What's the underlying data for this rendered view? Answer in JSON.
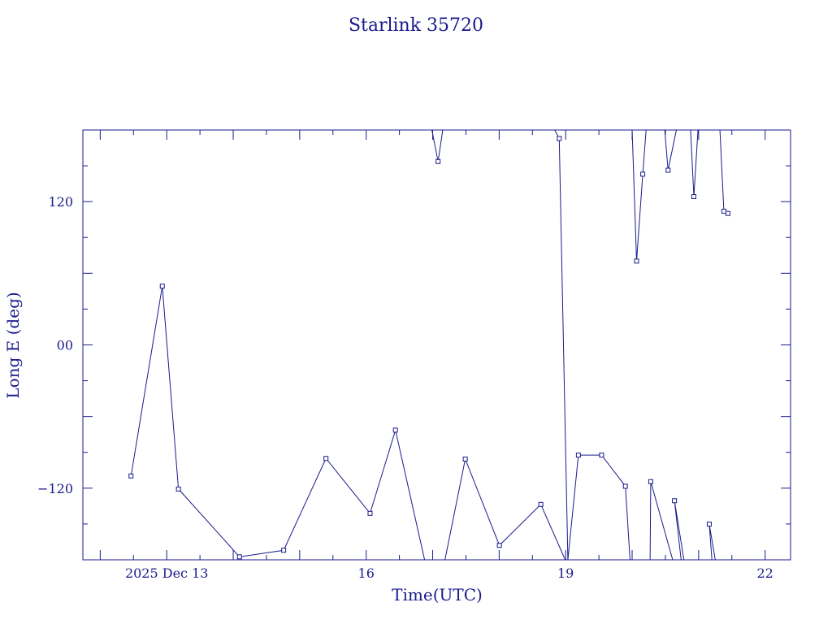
{
  "chart_data": {
    "type": "line",
    "title": "Starlink 35720",
    "xlabel": "Time(UTC)",
    "ylabel": "Long E (deg)",
    "xlim": [
      "2025-12-11T17:44",
      "2025-12-22T09:11"
    ],
    "ylim": [
      -180,
      180
    ],
    "y_ticks": [
      {
        "value": 120,
        "label": "120"
      },
      {
        "value": 0,
        "label": "00"
      },
      {
        "value": -120,
        "label": "−120"
      }
    ],
    "x_ticks": [
      {
        "value": "2025-12-13",
        "label": "2025 Dec 13"
      },
      {
        "value": "2025-12-16",
        "label": "16"
      },
      {
        "value": "2025-12-19",
        "label": "19"
      },
      {
        "value": "2025-12-22",
        "label": "22"
      }
    ],
    "grid": false,
    "colors": {
      "line": "#1a1a8c",
      "axes": "#1a1a8c",
      "text": "#1a1a8c"
    },
    "marker": "open-square",
    "series": [
      {
        "points": [
          {
            "t": "2025-12-12T11:07",
            "y": -109.8
          },
          {
            "t": "2025-12-12T22:24",
            "y": 49.2
          },
          {
            "t": "2025-12-13T04:14",
            "y": -120.7
          },
          {
            "t": "2025-12-14T02:16",
            "y": -177.5
          },
          {
            "t": "2025-12-14T18:13",
            "y": -172.0
          },
          {
            "t": "2025-12-15T09:29",
            "y": -95.1
          },
          {
            "t": "2025-12-16T01:24",
            "y": -141.1
          },
          {
            "t": "2025-12-16T10:34",
            "y": -71.4
          },
          {
            "t": "2025-12-16T21:05",
            "y": -180.0
          },
          {
            "t": "2025-12-16T23:43",
            "y": 180.0
          },
          {
            "t": "2025-12-17T01:57",
            "y": 153.6
          },
          {
            "t": "2025-12-17T03:38",
            "y": 180.0
          },
          {
            "t": "2025-12-17T04:26",
            "y": -180.0
          },
          {
            "t": "2025-12-17T11:46",
            "y": -95.6
          },
          {
            "t": "2025-12-18T00:05",
            "y": -167.9
          },
          {
            "t": "2025-12-18T15:02",
            "y": -133.6
          },
          {
            "t": "2025-12-18T23:51",
            "y": -180.0
          },
          {
            "t": "2025-12-18T20:02",
            "y": 180.0
          },
          {
            "t": "2025-12-18T21:41",
            "y": 172.9
          },
          {
            "t": "2025-12-19T00:48",
            "y": -180.0
          },
          {
            "t": "2025-12-19T04:36",
            "y": -92.3
          },
          {
            "t": "2025-12-19T12:58",
            "y": -92.3
          },
          {
            "t": "2025-12-19T21:34",
            "y": -118.4
          },
          {
            "t": "2025-12-19T23:14",
            "y": -180.0
          },
          {
            "t": "2025-12-20T01:26",
            "y": 180.0
          },
          {
            "t": "2025-12-20T00:00",
            "y": 180.0
          },
          {
            "t": "2025-12-20T01:36",
            "y": 70.2
          },
          {
            "t": "2025-12-20T03:50",
            "y": 143.0
          },
          {
            "t": "2025-12-20T05:02",
            "y": 180.0
          },
          {
            "t": "2025-12-20T06:29",
            "y": -180.0
          },
          {
            "t": "2025-12-20T06:43",
            "y": -114.5
          },
          {
            "t": "2025-12-20T14:38",
            "y": -180.0
          },
          {
            "t": "2025-12-20T09:07",
            "y": 180.0
          },
          {
            "t": "2025-12-20T11:46",
            "y": 180.0
          },
          {
            "t": "2025-12-20T12:58",
            "y": 146.3
          },
          {
            "t": "2025-12-20T15:58",
            "y": 180.0
          },
          {
            "t": "2025-12-20T17:41",
            "y": -180.0
          },
          {
            "t": "2025-12-20T15:17",
            "y": -130.5
          },
          {
            "t": "2025-12-20T18:41",
            "y": -180.0
          },
          {
            "t": "2025-12-20T21:05",
            "y": 180.0
          },
          {
            "t": "2025-12-20T22:17",
            "y": 124.2
          },
          {
            "t": "2025-12-20T23:46",
            "y": 180.0
          },
          {
            "t": "2025-12-21T01:41",
            "y": 180.0
          },
          {
            "t": "2025-12-21T04:48",
            "y": -180.0
          },
          {
            "t": "2025-12-21T03:50",
            "y": -150.1
          },
          {
            "t": "2025-12-21T06:00",
            "y": -180.0
          },
          {
            "t": "2025-12-21T07:41",
            "y": 180.0
          },
          {
            "t": "2025-12-21T09:07",
            "y": 112.0
          },
          {
            "t": "2025-12-21T10:34",
            "y": 110.1
          }
        ]
      }
    ]
  }
}
